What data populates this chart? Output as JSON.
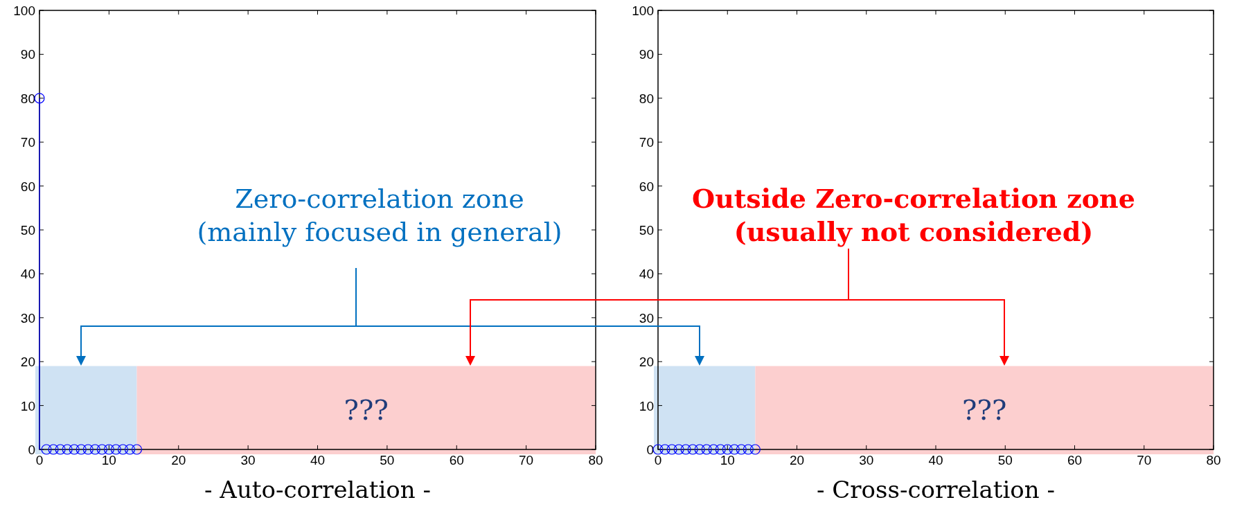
{
  "chart_data": [
    {
      "type": "lollipop",
      "xlabel": "- Auto-correlation -",
      "x": [
        0,
        1,
        2,
        3,
        4,
        5,
        6,
        7,
        8,
        9,
        10,
        11,
        12,
        13,
        14
      ],
      "series": [
        {
          "color": "#0000ff",
          "values": [
            80,
            0,
            0,
            0,
            0,
            0,
            0,
            0,
            0,
            0,
            0,
            0,
            0,
            0,
            0
          ]
        }
      ],
      "marker": "circle",
      "xlim": [
        0,
        80
      ],
      "ylim": [
        0,
        100
      ],
      "xticks": [
        0,
        10,
        20,
        30,
        40,
        50,
        60,
        70,
        80
      ],
      "yticks": [
        0,
        10,
        20,
        30,
        40,
        50,
        60,
        70,
        80,
        90,
        100
      ],
      "bands": [
        {
          "axis": "x",
          "from": 0,
          "to": 14,
          "color": "#cfe2f3"
        },
        {
          "axis": "x",
          "from": 14,
          "to": 80,
          "label": "???",
          "color": "#fccfcf"
        }
      ],
      "annotations": [
        "Zero-correlation zone\n(mainly focused in general)"
      ]
    },
    {
      "type": "lollipop",
      "xlabel": "- Cross-correlation -",
      "x": [
        0,
        1,
        2,
        3,
        4,
        5,
        6,
        7,
        8,
        9,
        10,
        11,
        12,
        13,
        14
      ],
      "series": [
        {
          "color": "#0000ff",
          "values": [
            0,
            0,
            0,
            0,
            0,
            0,
            0,
            0,
            0,
            0,
            0,
            0,
            0,
            0,
            0
          ]
        }
      ],
      "marker": "circle",
      "xlim": [
        0,
        80
      ],
      "ylim": [
        0,
        100
      ],
      "xticks": [
        0,
        10,
        20,
        30,
        40,
        50,
        60,
        70,
        80
      ],
      "yticks": [
        0,
        10,
        20,
        30,
        40,
        50,
        60,
        70,
        80,
        90,
        100
      ],
      "bands": [
        {
          "axis": "x",
          "from": 0,
          "to": 14,
          "color": "#cfe2f3"
        },
        {
          "axis": "x",
          "from": 14,
          "to": 80,
          "label": "???",
          "color": "#fccfcf"
        }
      ],
      "annotations": [
        "Outside Zero-correlation zone\n(usually not considered)"
      ]
    }
  ]
}
